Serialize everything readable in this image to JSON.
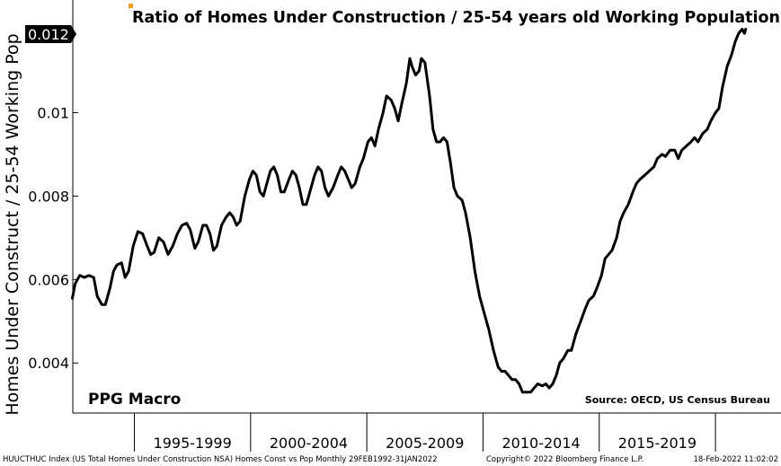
{
  "chart_data": {
    "type": "line",
    "title": "Ratio of Homes Under Construction / 25-54 years old Working Population",
    "ylabel": "Homes Under Construct / 25-54 Working Pop",
    "xlabel": "",
    "ylim": [
      0.0028,
      0.0127
    ],
    "xlim": [
      1992.1,
      2022.3
    ],
    "yticks": [
      0.004,
      0.006,
      0.008,
      0.01
    ],
    "ytick_labels": [
      "0.004",
      "0.006",
      "0.008",
      "0.01"
    ],
    "last_value_label": "0.012",
    "x_categories": [
      "1995-1999",
      "2000-2004",
      "2005-2009",
      "2010-2014",
      "2015-2019"
    ],
    "x_category_bounds": [
      [
        1994.75,
        1999.75
      ],
      [
        1999.75,
        2004.75
      ],
      [
        2004.75,
        2009.75
      ],
      [
        2009.75,
        2014.75
      ],
      [
        2014.75,
        2019.75
      ]
    ],
    "grid": false,
    "series": [
      {
        "color": "#000000",
        "points": [
          [
            1992.08,
            0.00555
          ],
          [
            1992.2,
            0.0059
          ],
          [
            1992.4,
            0.0061
          ],
          [
            1992.6,
            0.00605
          ],
          [
            1992.8,
            0.0061
          ],
          [
            1993.0,
            0.00605
          ],
          [
            1993.15,
            0.0056
          ],
          [
            1993.35,
            0.0054
          ],
          [
            1993.5,
            0.0054
          ],
          [
            1993.7,
            0.0058
          ],
          [
            1993.85,
            0.0062
          ],
          [
            1994.0,
            0.00635
          ],
          [
            1994.2,
            0.0064
          ],
          [
            1994.35,
            0.00605
          ],
          [
            1994.5,
            0.0062
          ],
          [
            1994.7,
            0.0068
          ],
          [
            1994.9,
            0.00715
          ],
          [
            1995.1,
            0.0071
          ],
          [
            1995.3,
            0.0068
          ],
          [
            1995.45,
            0.0066
          ],
          [
            1995.6,
            0.00665
          ],
          [
            1995.8,
            0.007
          ],
          [
            1996.0,
            0.0069
          ],
          [
            1996.2,
            0.0066
          ],
          [
            1996.4,
            0.0068
          ],
          [
            1996.6,
            0.0071
          ],
          [
            1996.8,
            0.0073
          ],
          [
            1997.0,
            0.00735
          ],
          [
            1997.15,
            0.0072
          ],
          [
            1997.35,
            0.00675
          ],
          [
            1997.5,
            0.0069
          ],
          [
            1997.7,
            0.0073
          ],
          [
            1997.85,
            0.0073
          ],
          [
            1998.0,
            0.0071
          ],
          [
            1998.15,
            0.0067
          ],
          [
            1998.3,
            0.0068
          ],
          [
            1998.5,
            0.0073
          ],
          [
            1998.7,
            0.0075
          ],
          [
            1998.85,
            0.0076
          ],
          [
            1999.0,
            0.0075
          ],
          [
            1999.15,
            0.0073
          ],
          [
            1999.3,
            0.0074
          ],
          [
            1999.5,
            0.008
          ],
          [
            1999.7,
            0.0084
          ],
          [
            1999.85,
            0.0086
          ],
          [
            2000.0,
            0.0085
          ],
          [
            2000.15,
            0.0081
          ],
          [
            2000.3,
            0.008
          ],
          [
            2000.45,
            0.0083
          ],
          [
            2000.6,
            0.0086
          ],
          [
            2000.75,
            0.0087
          ],
          [
            2000.9,
            0.0085
          ],
          [
            2001.05,
            0.0081
          ],
          [
            2001.2,
            0.0081
          ],
          [
            2001.4,
            0.0084
          ],
          [
            2001.55,
            0.0086
          ],
          [
            2001.7,
            0.0085
          ],
          [
            2001.85,
            0.0082
          ],
          [
            2002.0,
            0.0078
          ],
          [
            2002.15,
            0.0078
          ],
          [
            2002.3,
            0.0081
          ],
          [
            2002.5,
            0.0085
          ],
          [
            2002.65,
            0.0087
          ],
          [
            2002.8,
            0.0086
          ],
          [
            2002.95,
            0.0082
          ],
          [
            2003.1,
            0.008
          ],
          [
            2003.3,
            0.0082
          ],
          [
            2003.5,
            0.0085
          ],
          [
            2003.65,
            0.0087
          ],
          [
            2003.8,
            0.0086
          ],
          [
            2003.95,
            0.0084
          ],
          [
            2004.1,
            0.0082
          ],
          [
            2004.25,
            0.0083
          ],
          [
            2004.45,
            0.0087
          ],
          [
            2004.6,
            0.0089
          ],
          [
            2004.8,
            0.0093
          ],
          [
            2004.95,
            0.0094
          ],
          [
            2005.1,
            0.0092
          ],
          [
            2005.25,
            0.0096
          ],
          [
            2005.45,
            0.01
          ],
          [
            2005.6,
            0.0104
          ],
          [
            2005.8,
            0.0103
          ],
          [
            2005.95,
            0.0101
          ],
          [
            2006.1,
            0.0098
          ],
          [
            2006.25,
            0.0102
          ],
          [
            2006.45,
            0.0107
          ],
          [
            2006.6,
            0.0113
          ],
          [
            2006.7,
            0.0111
          ],
          [
            2006.85,
            0.0109
          ],
          [
            2007.0,
            0.011
          ],
          [
            2007.1,
            0.0113
          ],
          [
            2007.25,
            0.0112
          ],
          [
            2007.45,
            0.0104
          ],
          [
            2007.6,
            0.0096
          ],
          [
            2007.75,
            0.0093
          ],
          [
            2007.9,
            0.0093
          ],
          [
            2008.05,
            0.0094
          ],
          [
            2008.2,
            0.0093
          ],
          [
            2008.35,
            0.0088
          ],
          [
            2008.5,
            0.0082
          ],
          [
            2008.65,
            0.008
          ],
          [
            2008.85,
            0.0079
          ],
          [
            2009.0,
            0.0076
          ],
          [
            2009.2,
            0.007
          ],
          [
            2009.4,
            0.0062
          ],
          [
            2009.6,
            0.0056
          ],
          [
            2009.8,
            0.0052
          ],
          [
            2010.0,
            0.0048
          ],
          [
            2010.2,
            0.0043
          ],
          [
            2010.4,
            0.0039
          ],
          [
            2010.55,
            0.0038
          ],
          [
            2010.7,
            0.0038
          ],
          [
            2010.85,
            0.0037
          ],
          [
            2011.0,
            0.0036
          ],
          [
            2011.15,
            0.0036
          ],
          [
            2011.3,
            0.0035
          ],
          [
            2011.45,
            0.0033
          ],
          [
            2011.6,
            0.0033
          ],
          [
            2011.8,
            0.0033
          ],
          [
            2011.95,
            0.0034
          ],
          [
            2012.1,
            0.0035
          ],
          [
            2012.3,
            0.00345
          ],
          [
            2012.45,
            0.0035
          ],
          [
            2012.6,
            0.0034
          ],
          [
            2012.75,
            0.0035
          ],
          [
            2012.9,
            0.0037
          ],
          [
            2013.05,
            0.004
          ],
          [
            2013.2,
            0.0041
          ],
          [
            2013.4,
            0.0043
          ],
          [
            2013.55,
            0.0043
          ],
          [
            2013.75,
            0.0047
          ],
          [
            2013.95,
            0.005
          ],
          [
            2014.15,
            0.0053
          ],
          [
            2014.3,
            0.0055
          ],
          [
            2014.5,
            0.0056
          ],
          [
            2014.65,
            0.0058
          ],
          [
            2014.85,
            0.0061
          ],
          [
            2015.0,
            0.0065
          ],
          [
            2015.15,
            0.0066
          ],
          [
            2015.3,
            0.0067
          ],
          [
            2015.5,
            0.007
          ],
          [
            2015.65,
            0.0074
          ],
          [
            2015.8,
            0.0076
          ],
          [
            2016.0,
            0.0078
          ],
          [
            2016.2,
            0.0081
          ],
          [
            2016.35,
            0.0083
          ],
          [
            2016.5,
            0.0084
          ],
          [
            2016.7,
            0.0085
          ],
          [
            2016.9,
            0.0086
          ],
          [
            2017.1,
            0.0087
          ],
          [
            2017.25,
            0.0089
          ],
          [
            2017.45,
            0.009
          ],
          [
            2017.6,
            0.00895
          ],
          [
            2017.8,
            0.0091
          ],
          [
            2018.0,
            0.0091
          ],
          [
            2018.15,
            0.0089
          ],
          [
            2018.3,
            0.0091
          ],
          [
            2018.5,
            0.0092
          ],
          [
            2018.7,
            0.0093
          ],
          [
            2018.85,
            0.0094
          ],
          [
            2019.0,
            0.0093
          ],
          [
            2019.2,
            0.0095
          ],
          [
            2019.4,
            0.0096
          ],
          [
            2019.55,
            0.0098
          ],
          [
            2019.75,
            0.01
          ],
          [
            2019.9,
            0.0101
          ],
          [
            2020.05,
            0.0106
          ],
          [
            2020.25,
            0.0111
          ],
          [
            2020.45,
            0.0114
          ],
          [
            2020.6,
            0.0117
          ],
          [
            2020.75,
            0.0119
          ],
          [
            2020.9,
            0.012
          ],
          [
            2021.0,
            0.0119
          ],
          [
            2021.05,
            0.012
          ]
        ]
      }
    ]
  },
  "chart_text": {
    "brand": "PPG Macro",
    "source": "Source: OECD, US Census Bureau"
  },
  "footer": {
    "left": "HUUCTHUC Index (US Total Homes Under Construction NSA) Homes Const vs Pop  Monthly 29FEB1992-31JAN2022",
    "center": "Copyright© 2022 Bloomberg Finance L.P.",
    "right": "18-Feb-2022 11:02:02"
  },
  "colors": {
    "title_marker": "#f59a23",
    "line": "#000000",
    "last_value_bg": "#000000",
    "axis": "#000000"
  }
}
